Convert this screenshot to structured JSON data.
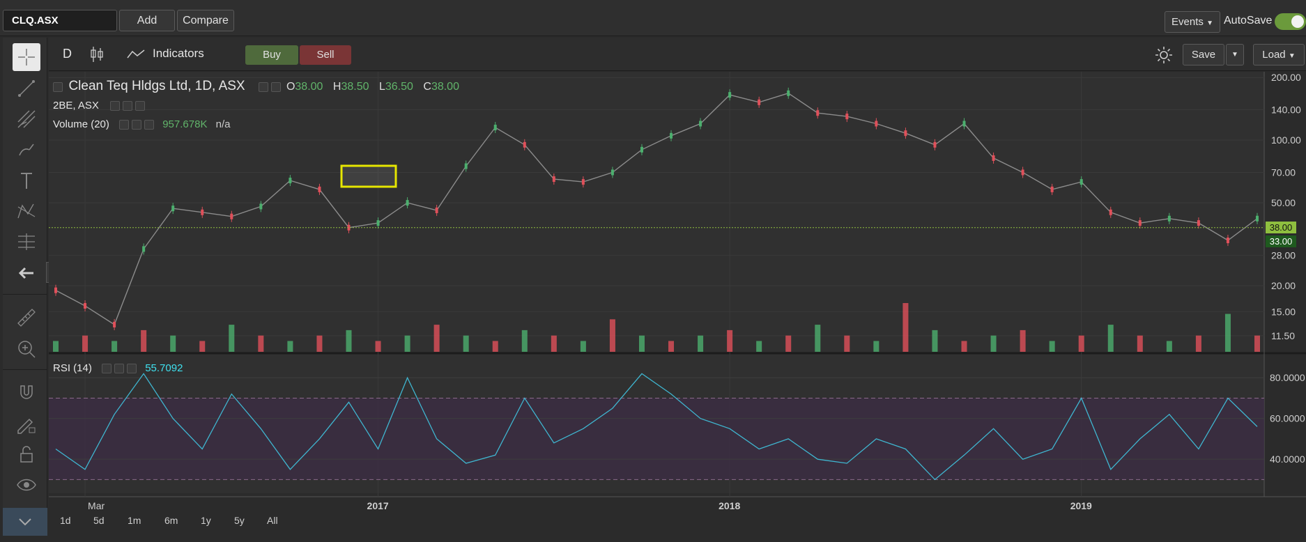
{
  "toolbar": {
    "symbol": "CLQ.ASX",
    "add": "Add",
    "compare": "Compare",
    "events": "Events",
    "autosave": "AutoSave"
  },
  "chart_toolbar": {
    "period": "D",
    "indicators": "Indicators",
    "buy": "Buy",
    "sell": "Sell",
    "save": "Save",
    "load": "Load"
  },
  "legend": {
    "title": "Clean Teq Hldgs Ltd, 1D, ASX",
    "o_label": "O",
    "o_value": "38.00",
    "h_label": "H",
    "h_value": "38.50",
    "l_label": "L",
    "l_value": "36.50",
    "c_label": "C",
    "c_value": "38.00",
    "compare_symbol": "2BE, ASX",
    "volume_label": "Volume (20)",
    "volume_value": "957.678K",
    "volume_ma": "n/a",
    "rsi_label": "RSI (14)",
    "rsi_value": "55.7092"
  },
  "price_badges": {
    "last": "38.00",
    "other": "33.00"
  },
  "range_buttons": [
    "1d",
    "5d",
    "1m",
    "6m",
    "1y",
    "5y",
    "All"
  ],
  "colors": {
    "up": "#4caf6e",
    "down": "#e0505a",
    "rsi_line": "#3fb6d0",
    "rsi_band": "#3c2d44",
    "accent": "#6b9a3c"
  },
  "chart_data": [
    {
      "type": "line",
      "name": "price",
      "scale": "log",
      "x": [
        "2016-02",
        "2016-03",
        "2016-04",
        "2016-05",
        "2016-06",
        "2016-07",
        "2016-08",
        "2016-09",
        "2016-10",
        "2016-11",
        "2016-12",
        "2017-01",
        "2017-02",
        "2017-03",
        "2017-04",
        "2017-05",
        "2017-06",
        "2017-07",
        "2017-08",
        "2017-09",
        "2017-10",
        "2017-11",
        "2017-12",
        "2018-01",
        "2018-02",
        "2018-03",
        "2018-04",
        "2018-05",
        "2018-06",
        "2018-07",
        "2018-08",
        "2018-09",
        "2018-10",
        "2018-11",
        "2018-12",
        "2019-01",
        "2019-02",
        "2019-03",
        "2019-04",
        "2019-05",
        "2019-06",
        "2019-07"
      ],
      "y": [
        19,
        16,
        13,
        30,
        47,
        45,
        43,
        48,
        64,
        58,
        38,
        40,
        50,
        46,
        75,
        115,
        95,
        65,
        63,
        70,
        90,
        105,
        120,
        165,
        152,
        168,
        135,
        130,
        120,
        108,
        95,
        120,
        82,
        70,
        58,
        63,
        45,
        40,
        42,
        40,
        33,
        42
      ],
      "x_ticks": [
        "Mar",
        "2017",
        "2018",
        "2019"
      ],
      "y_ticks": [
        "200.00",
        "140.00",
        "100.00",
        "70.00",
        "50.00",
        "28.00",
        "20.00",
        "15.00",
        "11.50"
      ],
      "ylim": [
        10,
        205
      ]
    },
    {
      "type": "bar",
      "name": "volume",
      "values": [
        2,
        3,
        2,
        4,
        3,
        2,
        5,
        3,
        2,
        3,
        4,
        2,
        3,
        5,
        3,
        2,
        4,
        3,
        2,
        6,
        3,
        2,
        3,
        4,
        2,
        3,
        5,
        3,
        2,
        9,
        4,
        2,
        3,
        4,
        2,
        3,
        5,
        3,
        2,
        3,
        7,
        3
      ]
    },
    {
      "type": "line",
      "name": "RSI (14)",
      "x": [
        "2016-02",
        "2016-03",
        "2016-04",
        "2016-05",
        "2016-06",
        "2016-07",
        "2016-08",
        "2016-09",
        "2016-10",
        "2016-11",
        "2016-12",
        "2017-01",
        "2017-02",
        "2017-03",
        "2017-04",
        "2017-05",
        "2017-06",
        "2017-07",
        "2017-08",
        "2017-09",
        "2017-10",
        "2017-11",
        "2017-12",
        "2018-01",
        "2018-02",
        "2018-03",
        "2018-04",
        "2018-05",
        "2018-06",
        "2018-07",
        "2018-08",
        "2018-09",
        "2018-10",
        "2018-11",
        "2018-12",
        "2019-01",
        "2019-02",
        "2019-03",
        "2019-04",
        "2019-05",
        "2019-06",
        "2019-07"
      ],
      "y": [
        45,
        35,
        62,
        82,
        60,
        45,
        72,
        55,
        35,
        50,
        68,
        45,
        80,
        50,
        38,
        42,
        70,
        48,
        55,
        65,
        82,
        72,
        60,
        55,
        45,
        50,
        40,
        38,
        50,
        45,
        30,
        42,
        55,
        40,
        45,
        70,
        35,
        50,
        62,
        45,
        70,
        56
      ],
      "y_ticks": [
        "80.0000",
        "60.0000",
        "40.0000"
      ],
      "ylim": [
        25,
        90
      ],
      "bands": [
        30,
        70
      ]
    }
  ]
}
